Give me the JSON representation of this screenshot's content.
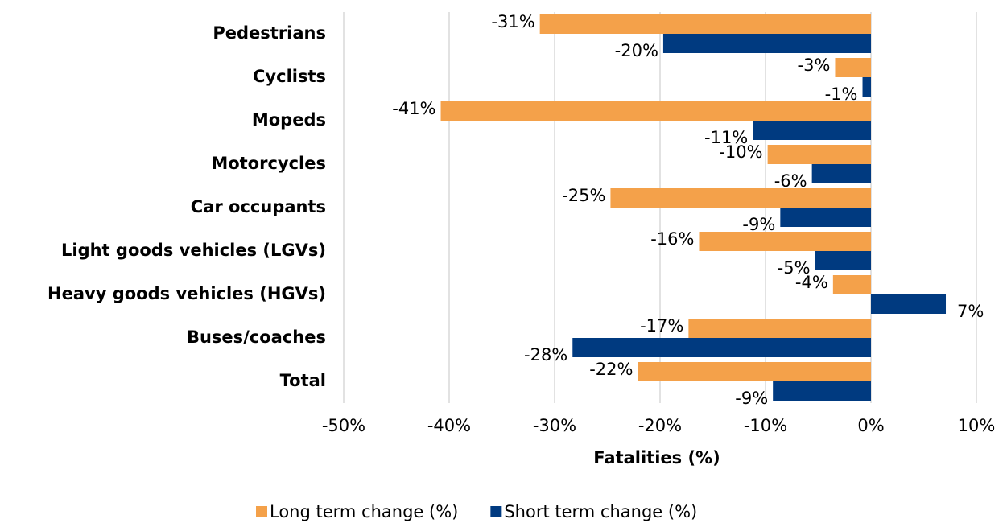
{
  "chart_data": {
    "type": "hbar",
    "xlabel": "Fatalities (%)",
    "categories": [
      "Pedestrians",
      "Cyclists",
      "Mopeds",
      "Motorcycles",
      "Car occupants",
      "Light goods vehicles (LGVs)",
      "Heavy goods vehicles (HGVs)",
      "Buses/coaches",
      "Total"
    ],
    "series": [
      {
        "name": "Long term change (%)",
        "color": "#f4a14a",
        "values": [
          -31.4,
          -3.4,
          -40.8,
          -9.8,
          -24.7,
          -16.3,
          -3.6,
          -17.3,
          -22.1
        ],
        "value_labels": [
          "-31%",
          "-3%",
          "-41%",
          "-10%",
          "-25%",
          "-16%",
          "-4%",
          "-17%",
          "-22%"
        ]
      },
      {
        "name": "Short term change (%)",
        "color": "#003a80",
        "values": [
          -19.7,
          -0.8,
          -11.2,
          -5.6,
          -8.6,
          -5.3,
          7.1,
          -28.3,
          -9.3
        ],
        "value_labels": [
          "-20%",
          "-1%",
          "-11%",
          "-6%",
          "-9%",
          "-5%",
          "7%",
          "-28%",
          "-9%"
        ]
      }
    ],
    "xlim": [
      -50,
      10
    ],
    "xticks": [
      {
        "value": -50,
        "label": "-50%"
      },
      {
        "value": -40,
        "label": "-40%"
      },
      {
        "value": -30,
        "label": "-30%"
      },
      {
        "value": -20,
        "label": "-20%"
      },
      {
        "value": -10,
        "label": "-10%"
      },
      {
        "value": 0,
        "label": "0%"
      },
      {
        "value": 10,
        "label": "10%"
      }
    ],
    "grid": true,
    "legend": "bottom"
  }
}
